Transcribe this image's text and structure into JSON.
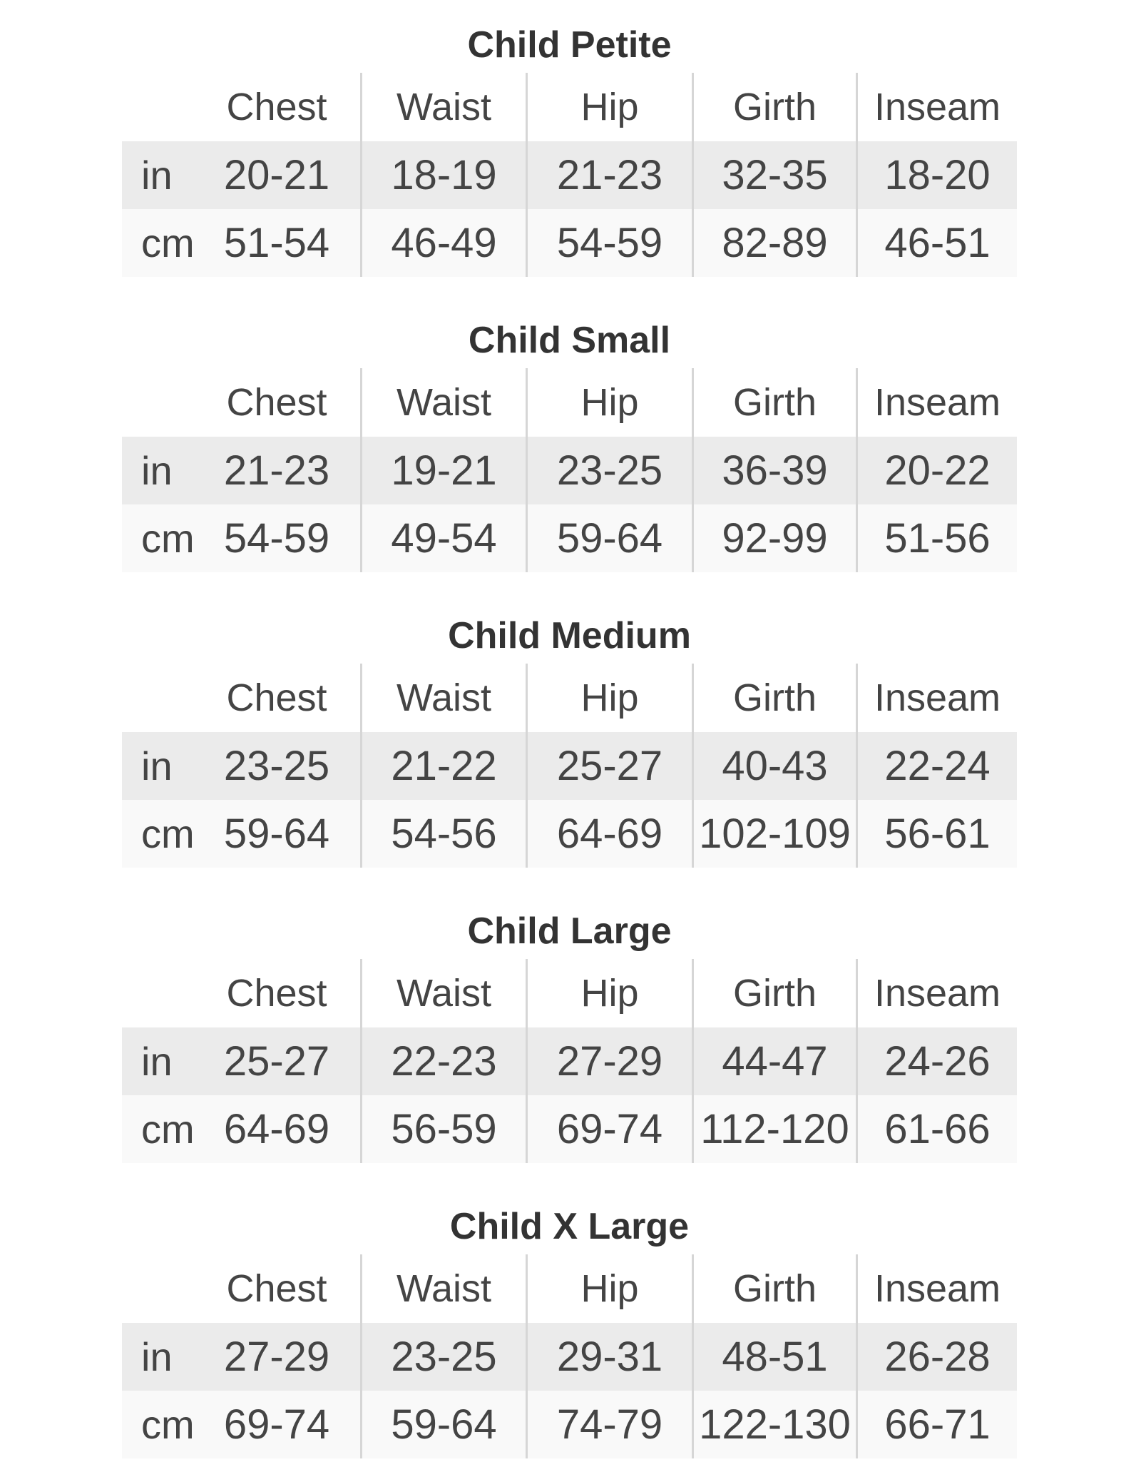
{
  "columns": [
    "Chest",
    "Waist",
    "Hip",
    "Girth",
    "Inseam"
  ],
  "units": [
    "in",
    "cm"
  ],
  "sections": [
    {
      "title": "Child Petite",
      "in": [
        "20-21",
        "18-19",
        "21-23",
        "32-35",
        "18-20"
      ],
      "cm": [
        "51-54",
        "46-49",
        "54-59",
        "82-89",
        "46-51"
      ]
    },
    {
      "title": "Child Small",
      "in": [
        "21-23",
        "19-21",
        "23-25",
        "36-39",
        "20-22"
      ],
      "cm": [
        "54-59",
        "49-54",
        "59-64",
        "92-99",
        "51-56"
      ]
    },
    {
      "title": "Child Medium",
      "in": [
        "23-25",
        "21-22",
        "25-27",
        "40-43",
        "22-24"
      ],
      "cm": [
        "59-64",
        "54-56",
        "64-69",
        "102-109",
        "56-61"
      ]
    },
    {
      "title": "Child Large",
      "in": [
        "25-27",
        "22-23",
        "27-29",
        "44-47",
        "24-26"
      ],
      "cm": [
        "64-69",
        "56-59",
        "69-74",
        "112-120",
        "61-66"
      ]
    },
    {
      "title": "Child X Large",
      "in": [
        "27-29",
        "23-25",
        "29-31",
        "48-51",
        "26-28"
      ],
      "cm": [
        "69-74",
        "59-64",
        "74-79",
        "122-130",
        "66-71"
      ]
    }
  ]
}
